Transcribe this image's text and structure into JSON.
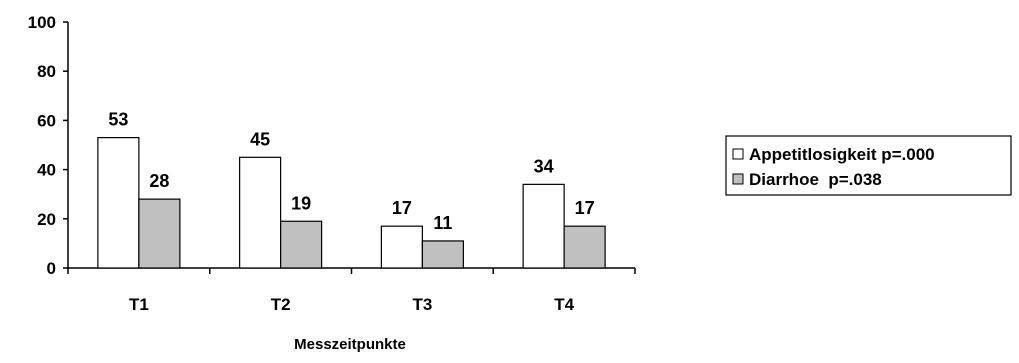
{
  "chart_data": {
    "type": "bar",
    "categories": [
      "T1",
      "T2",
      "T3",
      "T4"
    ],
    "series": [
      {
        "name": "Appetitlosigkeit p=.000",
        "values": [
          53,
          45,
          17,
          34
        ],
        "color": "#ffffff"
      },
      {
        "name": "Diarrhoe  p=.038",
        "values": [
          28,
          19,
          11,
          17
        ],
        "color": "#c0c0c0"
      }
    ],
    "xlabel": "Messzeitpunkte",
    "ylabel": "",
    "ylim": [
      0,
      100
    ],
    "yticks": [
      0,
      20,
      40,
      60,
      80,
      100
    ],
    "grid": false,
    "legend_position": "right",
    "bar_stroke_color": "#000000"
  }
}
